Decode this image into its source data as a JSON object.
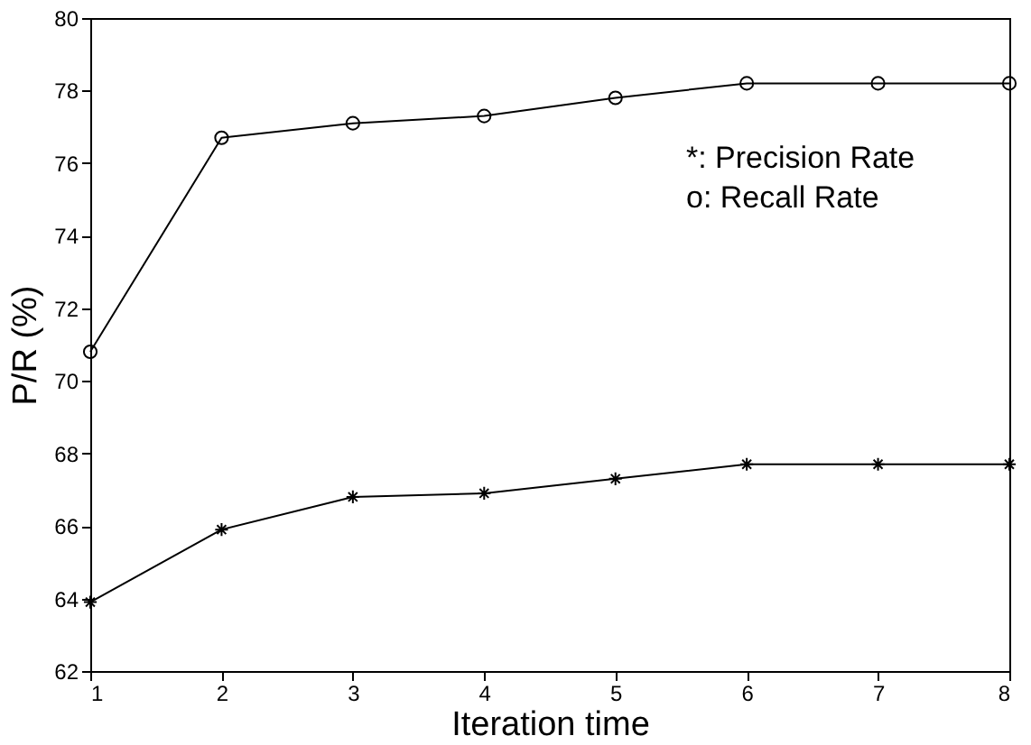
{
  "chart_data": {
    "type": "line",
    "xlabel": "Iteration time",
    "ylabel": "P/R (%)",
    "x": [
      1,
      2,
      3,
      4,
      5,
      6,
      7,
      8
    ],
    "series": [
      {
        "color": "#000000",
        "marker": "cross",
        "values": [
          63.9,
          65.9,
          66.8,
          66.9,
          67.3,
          67.7,
          67.7,
          67.7
        ]
      },
      {
        "color": "#000000",
        "marker": "circle",
        "values": [
          70.8,
          76.7,
          77.1,
          77.3,
          77.8,
          78.2,
          78.2,
          78.2
        ]
      }
    ],
    "xlim": [
      1,
      8
    ],
    "xticks": [
      1,
      2,
      3,
      4,
      5,
      6,
      7,
      8
    ],
    "ylim": [
      62,
      80
    ],
    "yticks": [
      62,
      64,
      66,
      68,
      70,
      72,
      74,
      76,
      78,
      80
    ],
    "annotations": [
      "*: Precision Rate",
      "o: Recall Rate"
    ],
    "grid": false,
    "line_style": "solid"
  }
}
